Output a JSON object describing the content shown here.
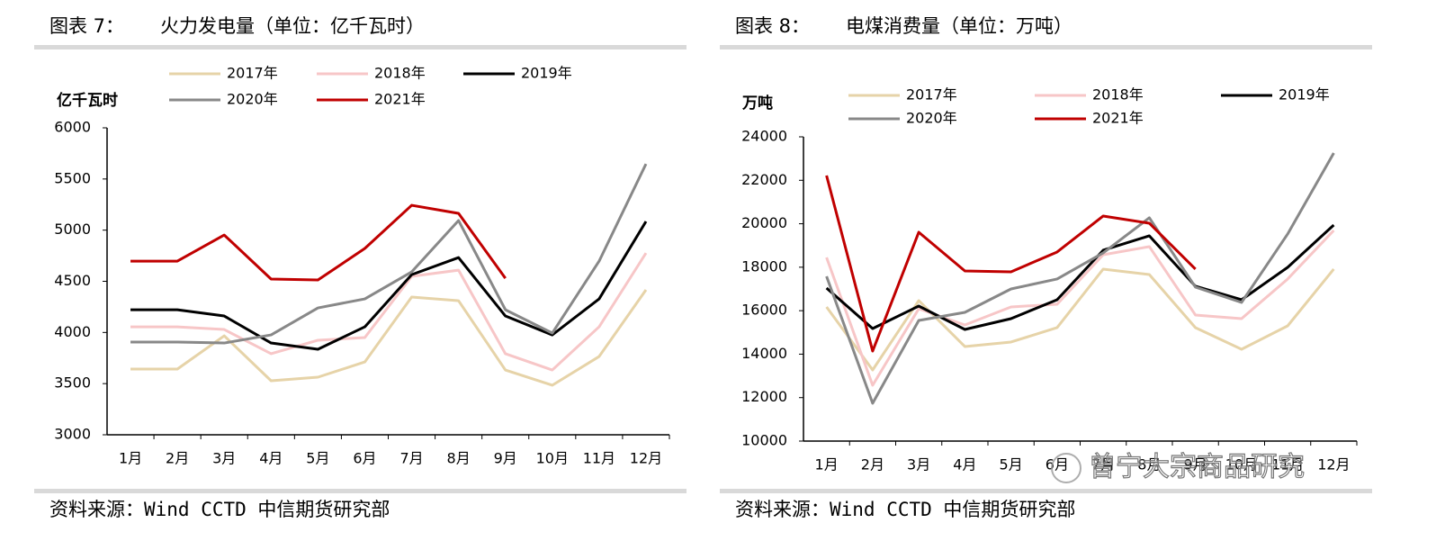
{
  "chart_data": [
    {
      "type": "line",
      "label": "图表 7：",
      "title": "火力发电量（单位：亿千瓦时）",
      "y_label": "亿千瓦时",
      "source": "资料来源：Wind CCTD 中信期货研究部",
      "categories": [
        "1月",
        "2月",
        "3月",
        "4月",
        "5月",
        "6月",
        "7月",
        "8月",
        "9月",
        "10月",
        "11月",
        "12月"
      ],
      "ylim": [
        3000,
        6000
      ],
      "yticks": [
        3000,
        3500,
        4000,
        4500,
        5000,
        5500,
        6000
      ],
      "grid": false,
      "series": [
        {
          "name": "2017年",
          "color": "#e6d3a8",
          "values": [
            3642,
            3642,
            3967,
            3528,
            3563,
            3712,
            4346,
            4310,
            3633,
            3484,
            3765,
            4416
          ]
        },
        {
          "name": "2018年",
          "color": "#f7c6c7",
          "values": [
            4055,
            4055,
            4029,
            3792,
            3924,
            3950,
            4548,
            4609,
            3792,
            3633,
            4055,
            4776
          ]
        },
        {
          "name": "2019年",
          "color": "#000000",
          "values": [
            4222,
            4222,
            4161,
            3897,
            3836,
            4055,
            4565,
            4732,
            4161,
            3976,
            4328,
            5085
          ]
        },
        {
          "name": "2020年",
          "color": "#888888",
          "values": [
            3906,
            3906,
            3897,
            3976,
            4240,
            4328,
            4592,
            5094,
            4222,
            3994,
            4697,
            5647
          ]
        },
        {
          "name": "2021年",
          "color": "#c00000",
          "values": [
            4697,
            4697,
            4952,
            4522,
            4513,
            4821,
            5243,
            5164,
            4530,
            null,
            null,
            null
          ]
        }
      ]
    },
    {
      "type": "line",
      "label": "图表 8：",
      "title": "电煤消费量（单位：万吨）",
      "y_label": "万吨",
      "source": "资料来源：Wind CCTD 中信期货研究部",
      "categories": [
        "1月",
        "2月",
        "3月",
        "4月",
        "5月",
        "6月",
        "7月",
        "8月",
        "9月",
        "10月",
        "11月",
        "12月"
      ],
      "ylim": [
        10000,
        24000
      ],
      "yticks": [
        10000,
        12000,
        14000,
        16000,
        18000,
        20000,
        22000,
        24000
      ],
      "grid": false,
      "series": [
        {
          "name": "2017年",
          "color": "#e6d3a8",
          "values": [
            16172,
            13272,
            16462,
            14350,
            14557,
            15220,
            17912,
            17664,
            15220,
            14225,
            15302,
            17912
          ]
        },
        {
          "name": "2018年",
          "color": "#f7c6c7",
          "values": [
            18450,
            12568,
            16089,
            15344,
            16172,
            16297,
            18575,
            18948,
            15800,
            15634,
            17457,
            19693
          ]
        },
        {
          "name": "2019年",
          "color": "#000000",
          "values": [
            17042,
            15178,
            16214,
            15137,
            15634,
            16504,
            18782,
            19445,
            17125,
            16504,
            17995,
            19942
          ]
        },
        {
          "name": "2020年",
          "color": "#888888",
          "values": [
            17581,
            11740,
            15551,
            15924,
            17000,
            17457,
            18658,
            20273,
            17084,
            16379,
            19528,
            23256
          ]
        },
        {
          "name": "2021年",
          "color": "#c00000",
          "values": [
            22220,
            14142,
            19610,
            17829,
            17788,
            18699,
            20356,
            20025,
            17912,
            null,
            null,
            null
          ]
        }
      ]
    }
  ],
  "watermark": "曾宁大宗商品研究"
}
